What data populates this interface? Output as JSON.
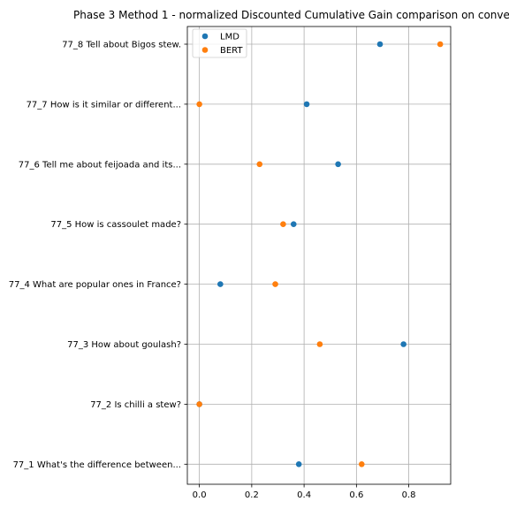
{
  "chart_data": {
    "type": "scatter",
    "title": "Phase 3 Method 1 - normalized Discounted Cumulative Gain comparison on conve",
    "xlabel": "",
    "ylabel": "",
    "xlim": [
      -0.046,
      0.96
    ],
    "x_ticks": [
      "0.0",
      "0.2",
      "0.4",
      "0.6",
      "0.8"
    ],
    "x_tick_values": [
      0.0,
      0.2,
      0.4,
      0.6,
      0.8
    ],
    "categories": [
      "77_8 Tell about Bigos stew.",
      "77_7 How is it similar or different...",
      "77_6 Tell me about feijoada and its...",
      "77_5 How is cassoulet made?",
      "77_4 What are popular ones in France?",
      "77_3 How about goulash?",
      "77_2 Is chilli a stew?",
      "77_1 What's the difference between..."
    ],
    "grid": true,
    "legend_position": "top-left",
    "series": [
      {
        "name": "LMD",
        "color": "#1f77b4",
        "values": [
          0.69,
          0.41,
          0.53,
          0.36,
          0.08,
          0.78,
          0.0,
          0.38
        ]
      },
      {
        "name": "BERT",
        "color": "#ff7f0e",
        "values": [
          0.92,
          0.0,
          0.23,
          0.32,
          0.29,
          0.46,
          0.0,
          0.62
        ]
      }
    ]
  }
}
